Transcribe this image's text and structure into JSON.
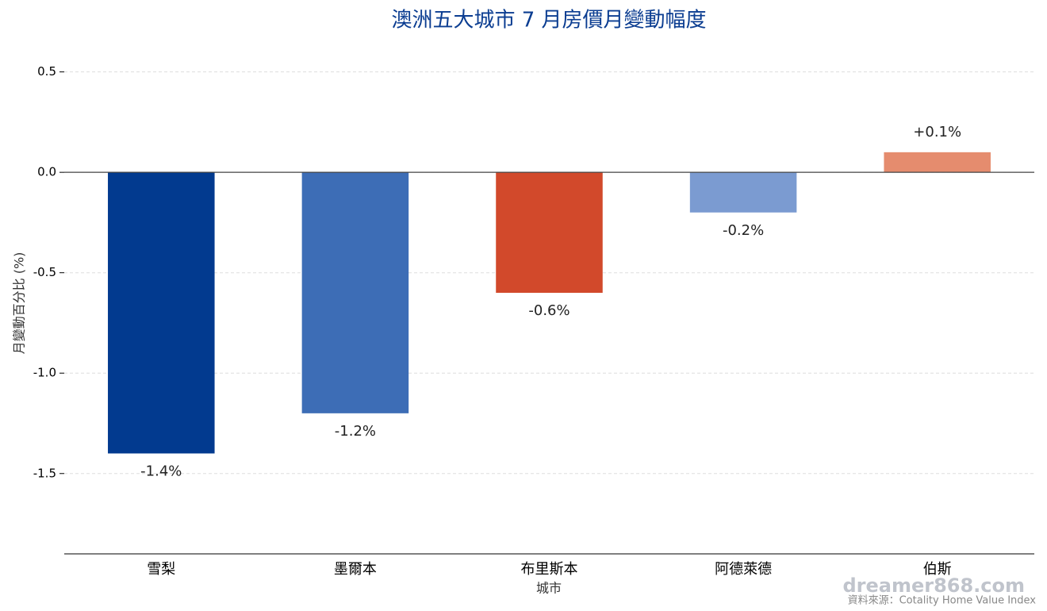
{
  "chart_data": {
    "type": "bar",
    "title": "澳洲五大城市 7 月房價月變動幅度",
    "x_label": "城市",
    "y_label": "月變動百分比 (%)",
    "categories": [
      "雪梨",
      "墨爾本",
      "布里斯本",
      "阿德萊德",
      "伯斯"
    ],
    "values": [
      -1.4,
      -1.2,
      -0.6,
      -0.2,
      0.1
    ],
    "value_labels": [
      "-1.4%",
      "-1.2%",
      "-0.6%",
      "-0.2%",
      "+0.1%"
    ],
    "colors": [
      "#023a8f",
      "#3d6db6",
      "#d2492b",
      "#7b9bd1",
      "#e58c6e"
    ],
    "ylim": [
      -1.9,
      0.7
    ],
    "yticks": [
      0.5,
      {
        "value": 0,
        "label": "0.0"
      },
      -0.5,
      {
        "value": -1,
        "label": "-1.0"
      },
      -1.5
    ],
    "grid": true,
    "watermark": "dreamer868.com",
    "source": "資料來源：Cotality Home Value Index"
  }
}
